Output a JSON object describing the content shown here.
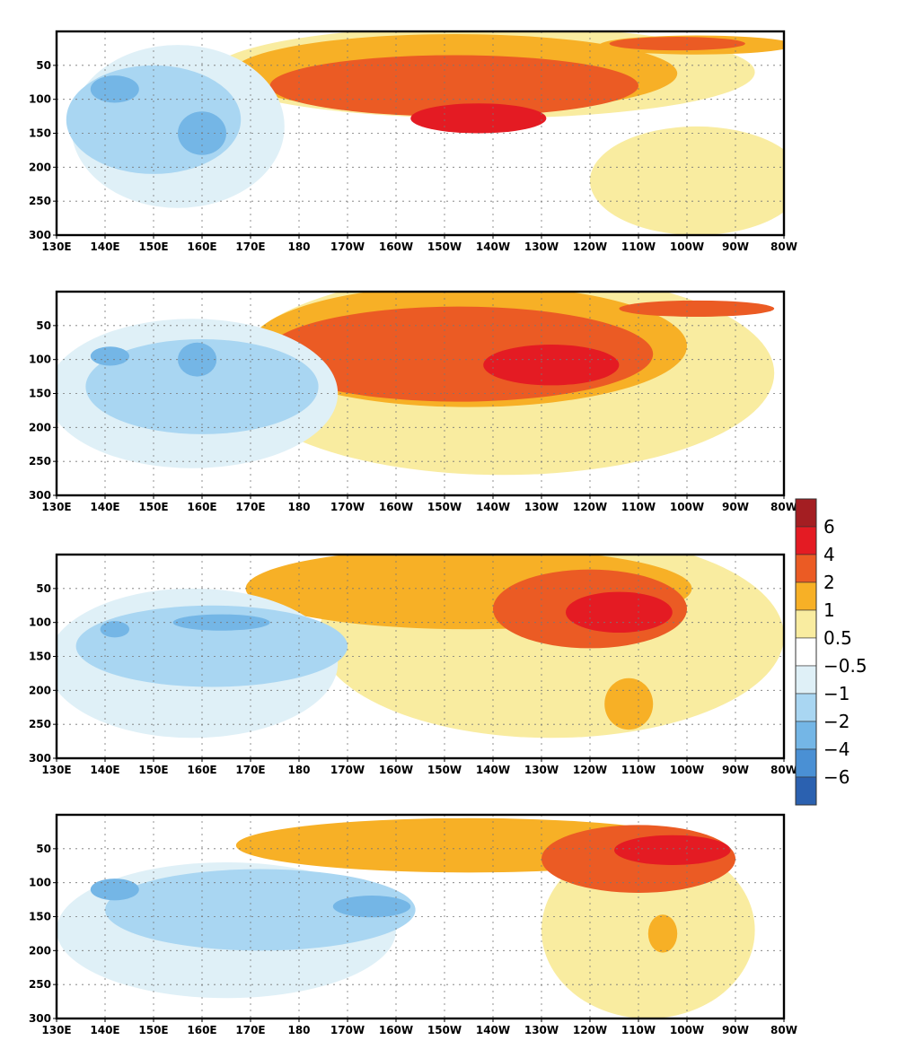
{
  "chart_data": {
    "type": "heatmap",
    "title": "",
    "xlabel": "",
    "ylabel": "",
    "colors": {
      "l6": "#a41e22",
      "l4": "#e41b23",
      "l2": "#eb5b24",
      "l1": "#f7b026",
      "l05": "#f9eca0",
      "neutral": "#ffffff",
      "n05": "#dff0f7",
      "n1": "#a9d6f2",
      "n2": "#74b6e6",
      "n4": "#4a90d4",
      "n6": "#2b61b0"
    },
    "colorbar": {
      "labels": [
        "6",
        "4",
        "2",
        "1",
        "0.5",
        "−0.5",
        "−1",
        "−2",
        "−4",
        "−6"
      ]
    },
    "x_ticks": [
      "130E",
      "140E",
      "150E",
      "160E",
      "170E",
      "180",
      "170W",
      "160W",
      "150W",
      "140W",
      "130W",
      "120W",
      "110W",
      "100W",
      "90W",
      "80W"
    ],
    "y_ticks": [
      "50",
      "100",
      "150",
      "200",
      "250",
      "300"
    ],
    "xlim": [
      130,
      280
    ],
    "ylim": [
      300,
      0
    ],
    "panels": [
      {
        "id": "panel-1",
        "blobs": [
          {
            "level": "l05",
            "cx": 218,
            "cy": 60,
            "rx": 56,
            "ry": 68
          },
          {
            "level": "l05",
            "cx": 262,
            "cy": 220,
            "rx": 22,
            "ry": 80
          },
          {
            "level": "l1",
            "cx": 212,
            "cy": 62,
            "rx": 46,
            "ry": 58
          },
          {
            "level": "l1",
            "cx": 262,
            "cy": 20,
            "rx": 20,
            "ry": 14
          },
          {
            "level": "l2",
            "cx": 212,
            "cy": 80,
            "rx": 38,
            "ry": 45
          },
          {
            "level": "l2",
            "cx": 258,
            "cy": 18,
            "rx": 14,
            "ry": 10
          },
          {
            "level": "l4",
            "cx": 217,
            "cy": 128,
            "rx": 14,
            "ry": 22
          },
          {
            "level": "n05",
            "cx": 155,
            "cy": 140,
            "rx": 22,
            "ry": 120
          },
          {
            "level": "n1",
            "cx": 150,
            "cy": 130,
            "rx": 18,
            "ry": 80
          },
          {
            "level": "n2",
            "cx": 142,
            "cy": 85,
            "rx": 5,
            "ry": 20
          },
          {
            "level": "n2",
            "cx": 160,
            "cy": 150,
            "rx": 5,
            "ry": 32
          }
        ]
      },
      {
        "id": "panel-2",
        "blobs": [
          {
            "level": "l05",
            "cx": 222,
            "cy": 120,
            "rx": 56,
            "ry": 150
          },
          {
            "level": "l1",
            "cx": 215,
            "cy": 80,
            "rx": 45,
            "ry": 90
          },
          {
            "level": "l2",
            "cx": 213,
            "cy": 92,
            "rx": 40,
            "ry": 70
          },
          {
            "level": "l2",
            "cx": 262,
            "cy": 25,
            "rx": 16,
            "ry": 12
          },
          {
            "level": "l4",
            "cx": 232,
            "cy": 108,
            "rx": 14,
            "ry": 30
          },
          {
            "level": "n05",
            "cx": 158,
            "cy": 150,
            "rx": 30,
            "ry": 110
          },
          {
            "level": "n1",
            "cx": 160,
            "cy": 140,
            "rx": 24,
            "ry": 70
          },
          {
            "level": "n2",
            "cx": 141,
            "cy": 95,
            "rx": 4,
            "ry": 14
          },
          {
            "level": "n2",
            "cx": 159,
            "cy": 100,
            "rx": 4,
            "ry": 25
          }
        ]
      },
      {
        "id": "panel-3",
        "blobs": [
          {
            "level": "l05",
            "cx": 232,
            "cy": 120,
            "rx": 48,
            "ry": 150
          },
          {
            "level": "l1",
            "cx": 215,
            "cy": 50,
            "rx": 46,
            "ry": 60
          },
          {
            "level": "l1",
            "cx": 248,
            "cy": 220,
            "rx": 5,
            "ry": 38
          },
          {
            "level": "l2",
            "cx": 240,
            "cy": 80,
            "rx": 20,
            "ry": 58
          },
          {
            "level": "l4",
            "cx": 246,
            "cy": 85,
            "rx": 11,
            "ry": 30
          },
          {
            "level": "n05",
            "cx": 158,
            "cy": 160,
            "rx": 30,
            "ry": 110
          },
          {
            "level": "n1",
            "cx": 162,
            "cy": 135,
            "rx": 28,
            "ry": 60
          },
          {
            "level": "n2",
            "cx": 142,
            "cy": 110,
            "rx": 3,
            "ry": 12
          },
          {
            "level": "n2",
            "cx": 164,
            "cy": 100,
            "rx": 10,
            "ry": 12
          }
        ]
      },
      {
        "id": "panel-4",
        "blobs": [
          {
            "level": "l05",
            "cx": 252,
            "cy": 170,
            "rx": 22,
            "ry": 130
          },
          {
            "level": "l1",
            "cx": 215,
            "cy": 45,
            "rx": 48,
            "ry": 40
          },
          {
            "level": "l1",
            "cx": 255,
            "cy": 175,
            "rx": 3,
            "ry": 28
          },
          {
            "level": "l2",
            "cx": 250,
            "cy": 65,
            "rx": 20,
            "ry": 50
          },
          {
            "level": "l4",
            "cx": 257,
            "cy": 52,
            "rx": 12,
            "ry": 22
          },
          {
            "level": "n05",
            "cx": 165,
            "cy": 170,
            "rx": 35,
            "ry": 100
          },
          {
            "level": "n1",
            "cx": 172,
            "cy": 140,
            "rx": 32,
            "ry": 60
          },
          {
            "level": "n2",
            "cx": 142,
            "cy": 110,
            "rx": 5,
            "ry": 16
          },
          {
            "level": "n2",
            "cx": 195,
            "cy": 135,
            "rx": 8,
            "ry": 16
          }
        ]
      }
    ]
  }
}
